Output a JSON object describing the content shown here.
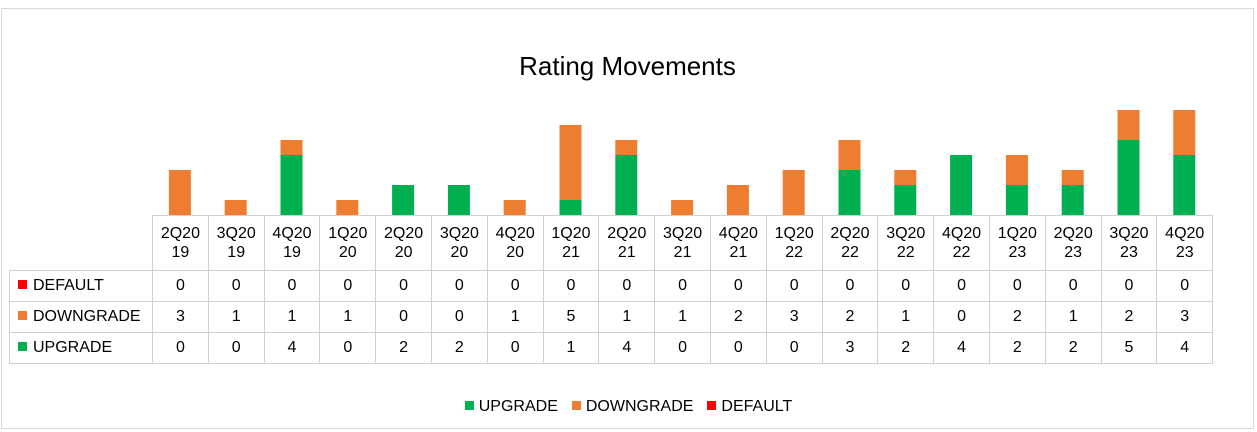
{
  "colors": {
    "upgrade": "#00b050",
    "downgrade": "#ed7d31",
    "default": "#ff0000"
  },
  "chart_data": {
    "type": "bar",
    "stacked": true,
    "title": "Rating Movements",
    "categories": [
      "2Q20\n19",
      "3Q20\n19",
      "4Q20\n19",
      "1Q20\n20",
      "2Q20\n20",
      "3Q20\n20",
      "4Q20\n20",
      "1Q20\n21",
      "2Q20\n21",
      "3Q20\n21",
      "4Q20\n21",
      "1Q20\n22",
      "2Q20\n22",
      "3Q20\n22",
      "4Q20\n22",
      "1Q20\n23",
      "2Q20\n23",
      "3Q20\n23",
      "4Q20\n23"
    ],
    "series": [
      {
        "name": "DEFAULT",
        "color": "#ff0000",
        "values": [
          0,
          0,
          0,
          0,
          0,
          0,
          0,
          0,
          0,
          0,
          0,
          0,
          0,
          0,
          0,
          0,
          0,
          0,
          0
        ]
      },
      {
        "name": "DOWNGRADE",
        "color": "#ed7d31",
        "values": [
          3,
          1,
          1,
          1,
          0,
          0,
          1,
          5,
          1,
          1,
          2,
          3,
          2,
          1,
          0,
          2,
          1,
          2,
          3
        ]
      },
      {
        "name": "UPGRADE",
        "color": "#00b050",
        "values": [
          0,
          0,
          4,
          0,
          2,
          2,
          0,
          1,
          4,
          0,
          0,
          0,
          3,
          2,
          4,
          2,
          2,
          5,
          4
        ]
      }
    ],
    "stack_order": [
      "UPGRADE",
      "DOWNGRADE",
      "DEFAULT"
    ],
    "legend": [
      "UPGRADE",
      "DOWNGRADE",
      "DEFAULT"
    ],
    "legend_position": "bottom",
    "data_table": true,
    "grid": false,
    "ylim": [
      0,
      7
    ]
  }
}
